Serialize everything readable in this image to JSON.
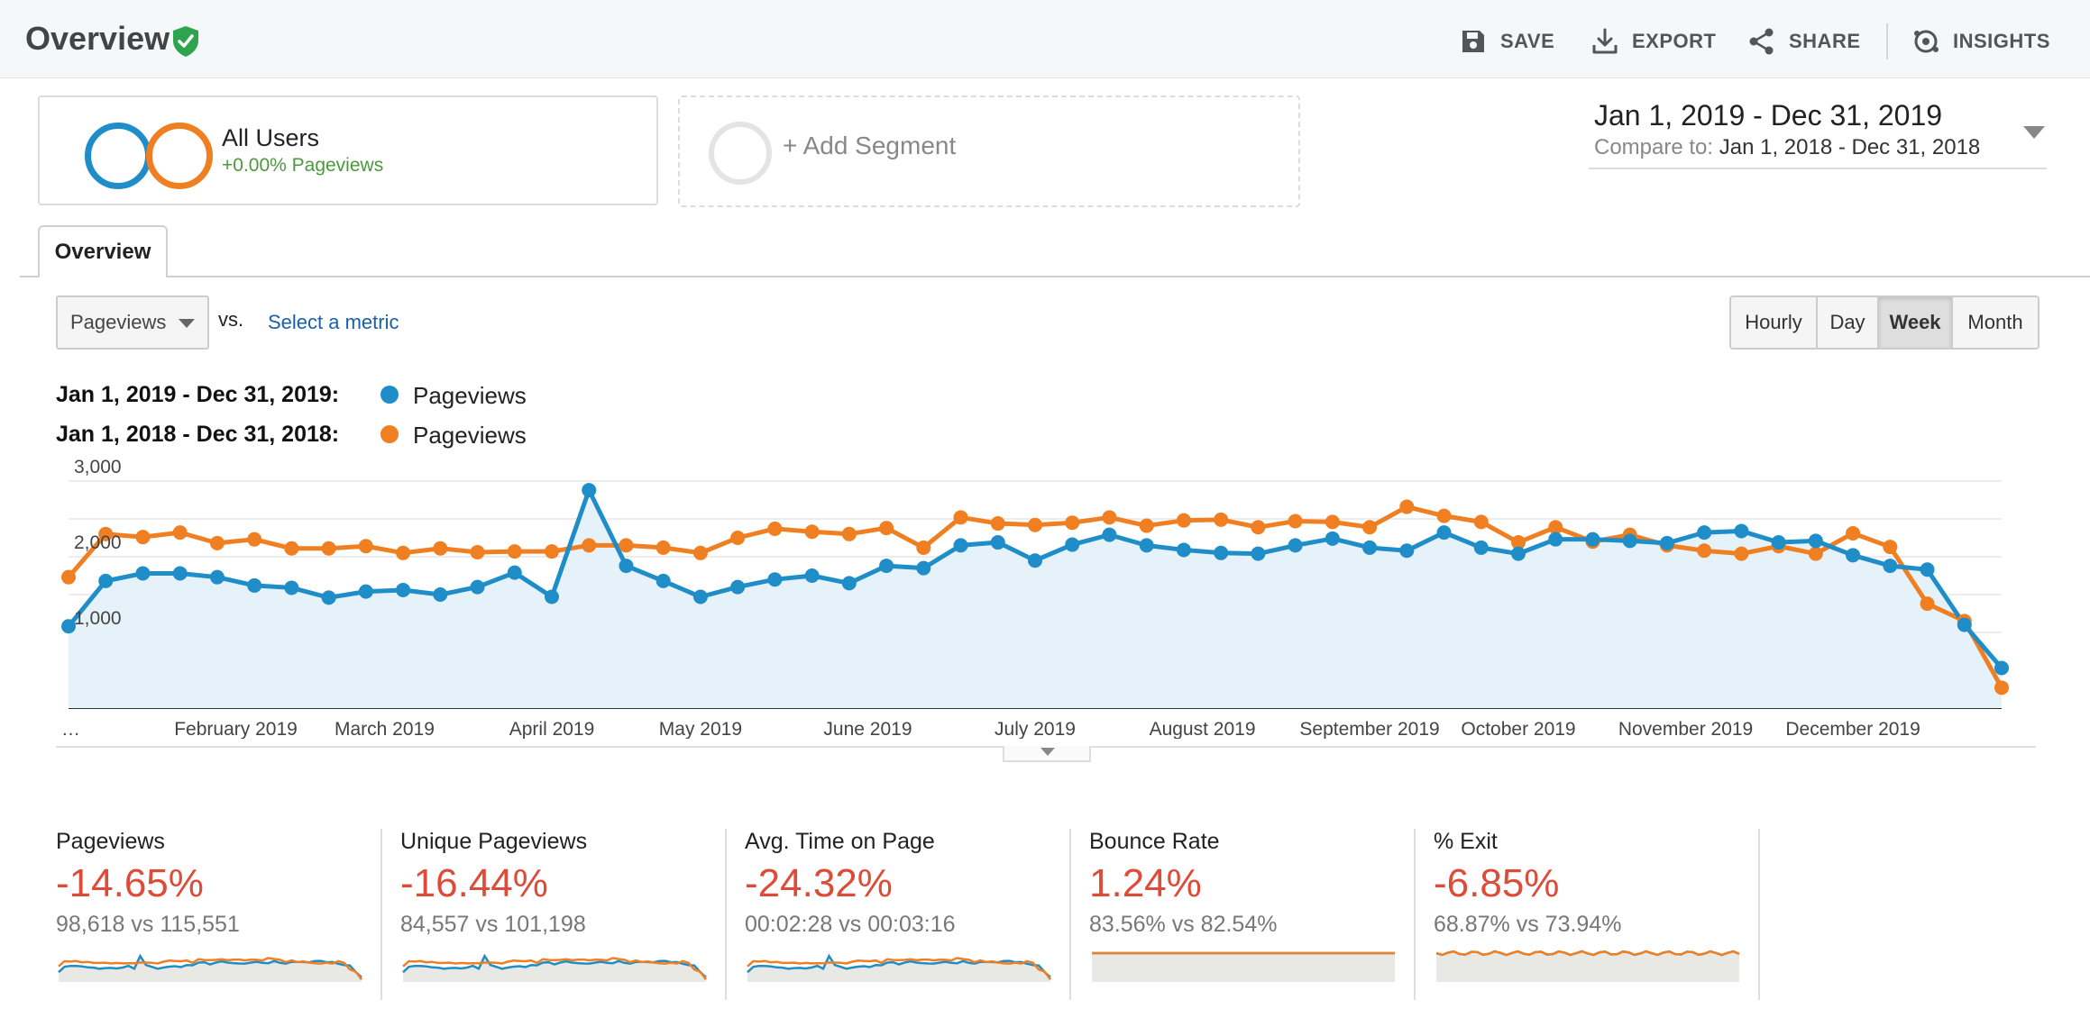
{
  "header": {
    "title": "Overview",
    "actions": [
      {
        "label": "SAVE",
        "icon": "save-icon"
      },
      {
        "label": "EXPORT",
        "icon": "export-icon"
      },
      {
        "label": "SHARE",
        "icon": "share-icon"
      },
      {
        "label": "INSIGHTS",
        "icon": "insights-icon"
      }
    ]
  },
  "segments": {
    "active": {
      "name": "All Users",
      "subtitle": "+0.00% Pageviews"
    },
    "add_label": "+ Add Segment"
  },
  "date_range": {
    "main": "Jan 1, 2019 - Dec 31, 2019",
    "compare_prefix": "Compare to:",
    "compare_range": "Jan 1, 2018 - Dec 31, 2018"
  },
  "tabs": [
    {
      "label": "Overview",
      "active": true
    }
  ],
  "controls": {
    "metric": "Pageviews",
    "vs_label": "vs.",
    "select_metric": "Select a metric",
    "granularity": [
      "Hourly",
      "Day",
      "Week",
      "Month"
    ],
    "active_granularity": "Week"
  },
  "legend": [
    {
      "range": "Jan 1, 2019 - Dec 31, 2019:",
      "metric": "Pageviews",
      "color": "#1f8dc8"
    },
    {
      "range": "Jan 1, 2018 - Dec 31, 2018:",
      "metric": "Pageviews",
      "color": "#f07f22"
    }
  ],
  "colors": {
    "current": "#1f8dc8",
    "previous": "#f07f22",
    "negative": "#dd4b39",
    "positive": "#4a9a3c",
    "area_fill": "#e6f2fa"
  },
  "chart_data": {
    "type": "line",
    "ylim": [
      0,
      3000
    ],
    "yticks": [
      "1,000",
      "2,000",
      "3,000"
    ],
    "yticks_values": [
      1000,
      2000,
      3000
    ],
    "xlabels": [
      "…",
      "February 2019",
      "March 2019",
      "April 2019",
      "May 2019",
      "June 2019",
      "July 2019",
      "August 2019",
      "September 2019",
      "October 2019",
      "November 2019",
      "December 2019"
    ],
    "xlabel_weeks": [
      0,
      4.5,
      8.5,
      13,
      17,
      21.5,
      26,
      30.5,
      35,
      39,
      43.5,
      48
    ],
    "grid": true,
    "legend_position": "top-left",
    "series": [
      {
        "name": "Pageviews",
        "period": "Jan 1, 2019 - Dec 31, 2019",
        "values": [
          1080,
          1680,
          1780,
          1780,
          1730,
          1620,
          1590,
          1460,
          1540,
          1560,
          1500,
          1600,
          1790,
          1470,
          2880,
          1880,
          1680,
          1470,
          1600,
          1700,
          1750,
          1650,
          1880,
          1850,
          2150,
          2190,
          1950,
          2160,
          2290,
          2150,
          2090,
          2050,
          2040,
          2150,
          2240,
          2120,
          2080,
          2320,
          2120,
          2040,
          2230,
          2230,
          2210,
          2180,
          2320,
          2340,
          2190,
          2210,
          2020,
          1880,
          1830,
          1100,
          530
        ]
      },
      {
        "name": "Pageviews",
        "period": "Jan 1, 2018 - Dec 31, 2018",
        "values": [
          1730,
          2300,
          2260,
          2320,
          2180,
          2230,
          2110,
          2110,
          2140,
          2050,
          2110,
          2060,
          2070,
          2070,
          2150,
          2150,
          2120,
          2050,
          2250,
          2370,
          2330,
          2300,
          2380,
          2120,
          2520,
          2440,
          2420,
          2450,
          2520,
          2410,
          2480,
          2490,
          2390,
          2470,
          2460,
          2390,
          2660,
          2540,
          2460,
          2190,
          2390,
          2200,
          2290,
          2150,
          2080,
          2040,
          2140,
          2040,
          2310,
          2130,
          1380,
          1150,
          270
        ]
      }
    ]
  },
  "scorecards": [
    {
      "title": "Pageviews",
      "change": "-14.65%",
      "compare": "98,618 vs 115,551"
    },
    {
      "title": "Unique Pageviews",
      "change": "-16.44%",
      "compare": "84,557 vs 101,198"
    },
    {
      "title": "Avg. Time on Page",
      "change": "-24.32%",
      "compare": "00:02:28 vs 00:03:16"
    },
    {
      "title": "Bounce Rate",
      "change": "1.24%",
      "compare": "83.56% vs 82.54%"
    },
    {
      "title": "% Exit",
      "change": "-6.85%",
      "compare": "68.87% vs 73.94%"
    }
  ]
}
